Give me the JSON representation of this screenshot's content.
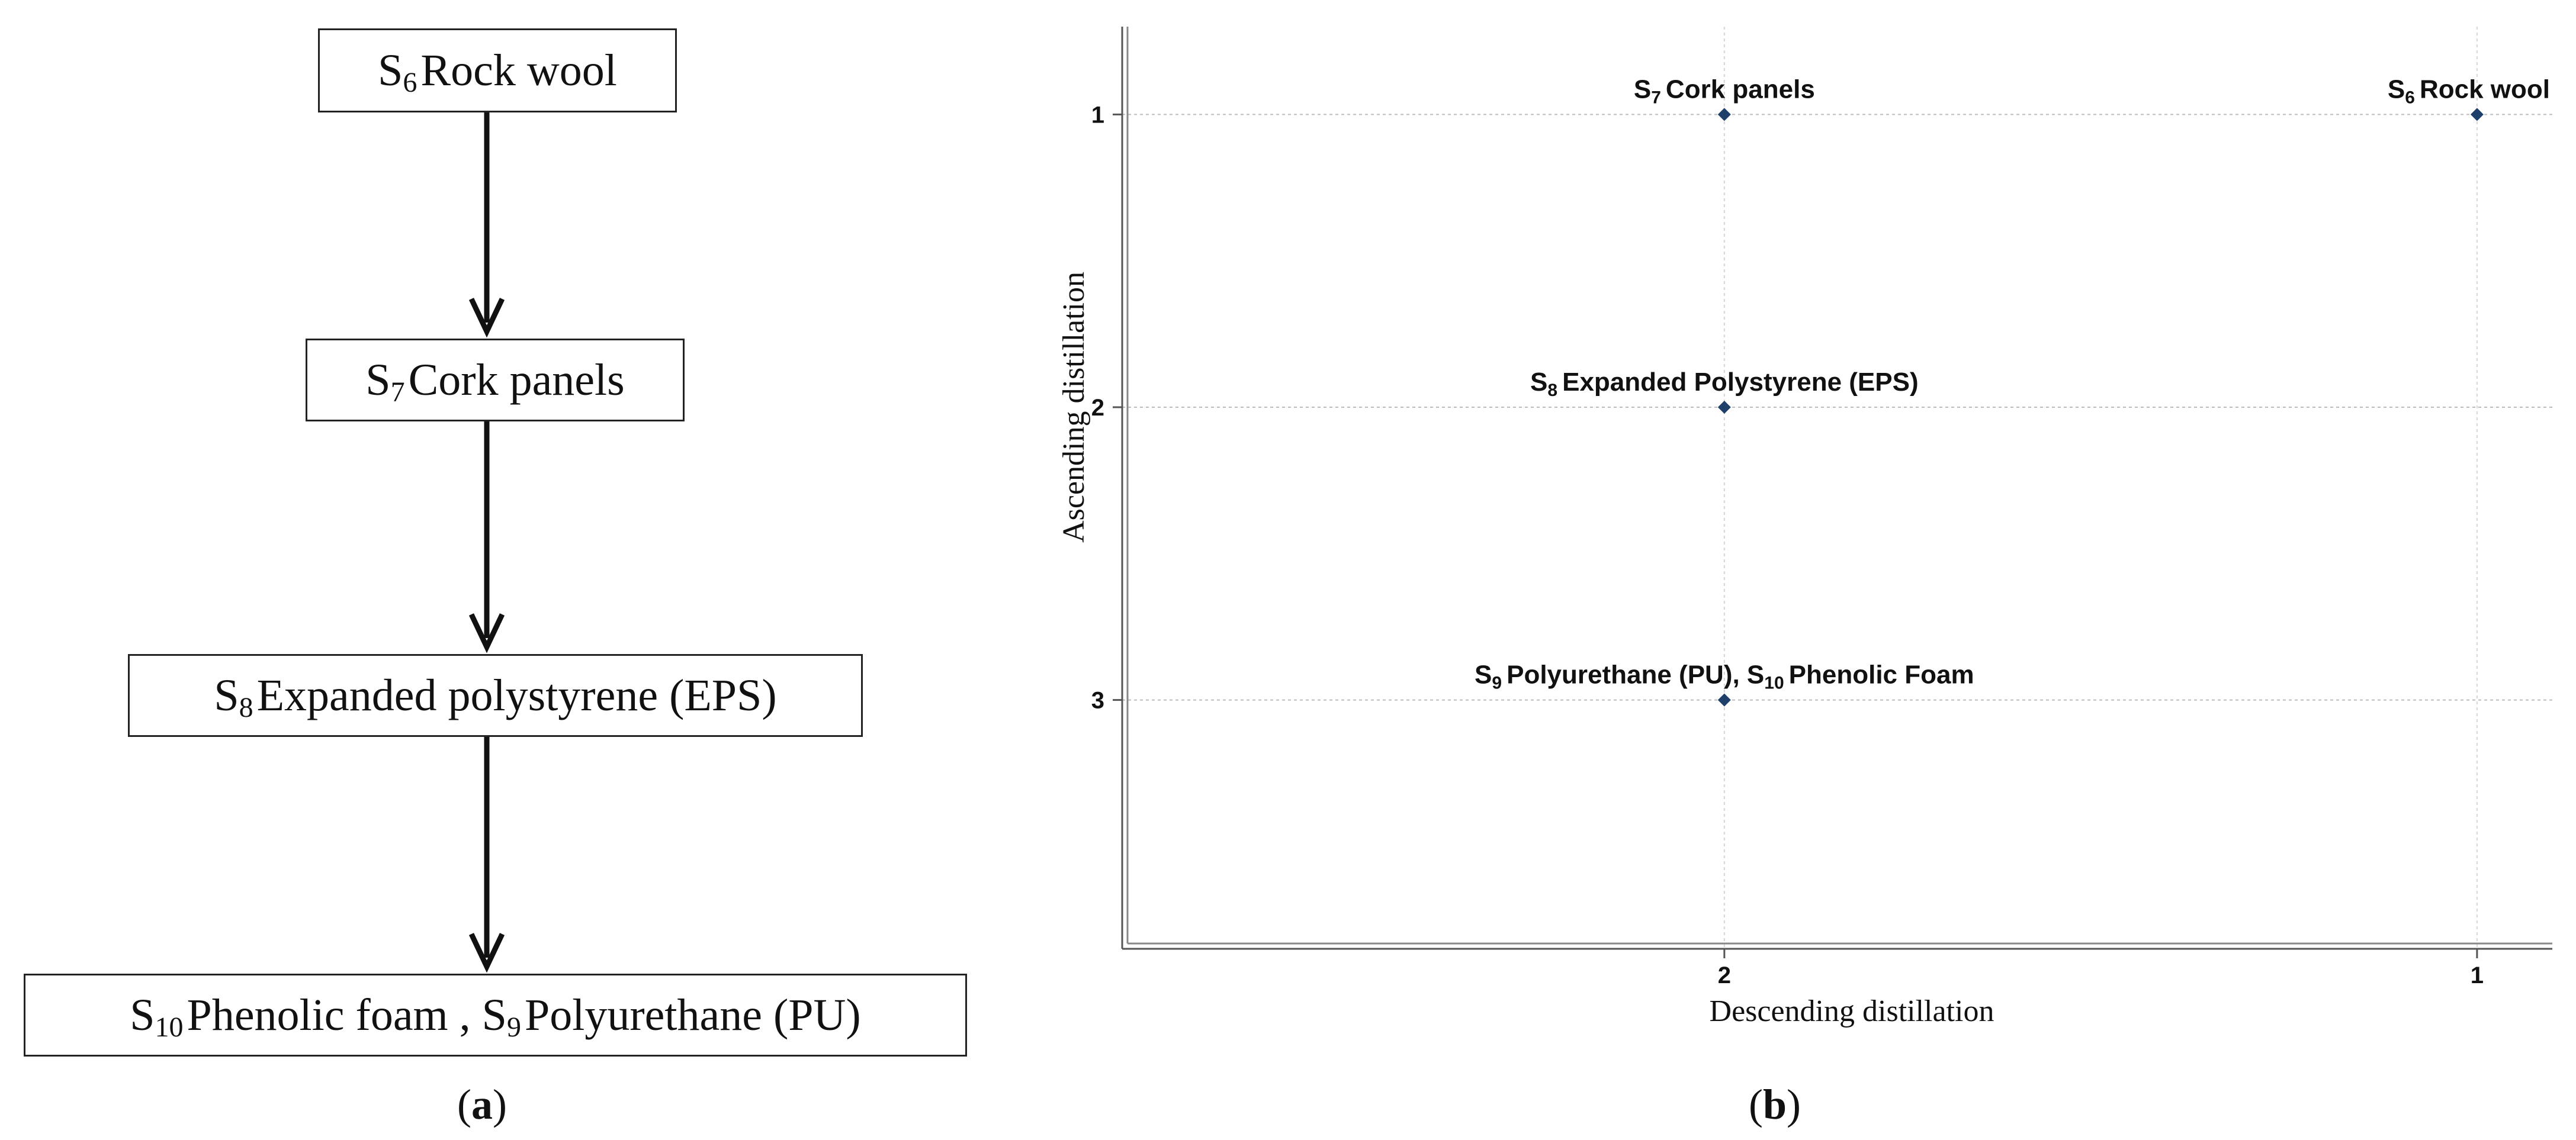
{
  "flow": {
    "nodes": [
      {
        "parts": [
          {
            "text": "S"
          },
          {
            "sub": "6"
          },
          {
            "text": "Rock wool"
          }
        ]
      },
      {
        "parts": [
          {
            "text": "S"
          },
          {
            "sub": "7"
          },
          {
            "text": "Cork panels"
          }
        ]
      },
      {
        "parts": [
          {
            "text": "S"
          },
          {
            "sub": "8"
          },
          {
            "text": "Expanded polystyrene (EPS)"
          }
        ]
      },
      {
        "parts": [
          {
            "text": "S"
          },
          {
            "sub": "10"
          },
          {
            "text": "Phenolic foam , S"
          },
          {
            "sub": "9"
          },
          {
            "text": "Polyurethane (PU)"
          }
        ]
      }
    ],
    "caption": {
      "open": "(",
      "letter": "a",
      "close": ")"
    }
  },
  "chart_data": {
    "type": "scatter",
    "xlabel": "Descending distillation",
    "ylabel": "Ascending distillation",
    "x_ticks": [
      2,
      1
    ],
    "y_ticks": [
      1,
      2,
      3
    ],
    "xlim": [
      2.8,
      0.9
    ],
    "ylim": [
      0.7,
      3.85
    ],
    "x_reversed": true,
    "y_reversed": true,
    "grid": true,
    "point_color": "#1f3f6b",
    "points": [
      {
        "x": 2,
        "y": 1,
        "label_parts": [
          {
            "text": "S"
          },
          {
            "sub": "7"
          },
          {
            "text": "Cork panels"
          }
        ]
      },
      {
        "x": 1,
        "y": 1,
        "label_parts": [
          {
            "text": "S"
          },
          {
            "sub": "6"
          },
          {
            "text": "Rock wool"
          }
        ]
      },
      {
        "x": 2,
        "y": 2,
        "label_parts": [
          {
            "text": "S"
          },
          {
            "sub": "8"
          },
          {
            "text": "Expanded Polystyrene (EPS)"
          }
        ]
      },
      {
        "x": 2,
        "y": 3,
        "label_parts": [
          {
            "text": "S"
          },
          {
            "sub": "9"
          },
          {
            "text": "Polyurethane (PU), S"
          },
          {
            "sub": "10"
          },
          {
            "text": "Phenolic Foam"
          }
        ]
      }
    ],
    "caption": {
      "open": "(",
      "letter": "b",
      "close": ")"
    }
  }
}
